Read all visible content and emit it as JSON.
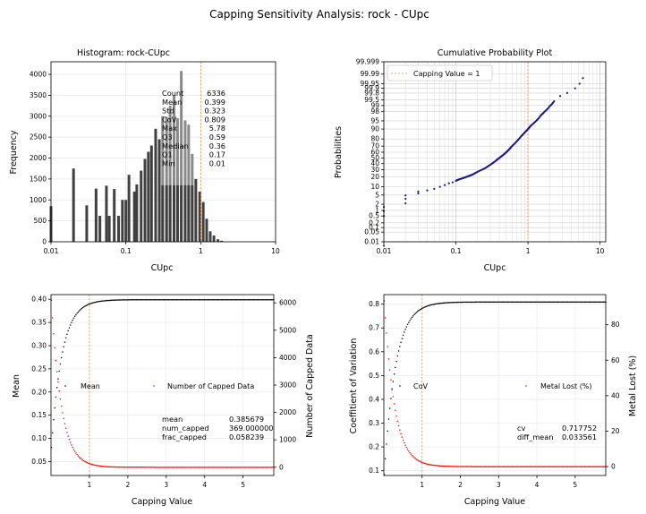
{
  "figure": {
    "title": "Capping Sensitivity Analysis: rock - CUpc"
  },
  "chart_data": [
    {
      "type": "bar",
      "title": "Histogram: rock-CUpc",
      "xlabel": "CUpc",
      "ylabel": "Frequency",
      "xscale": "log",
      "xlim": [
        0.01,
        10
      ],
      "ylim": [
        0,
        4300
      ],
      "x_ticks": [
        "0.01",
        "0.1",
        "1",
        "10"
      ],
      "y_ticks": [
        "0",
        "500",
        "1000",
        "1500",
        "2000",
        "2500",
        "3000",
        "3500",
        "4000"
      ],
      "grid": true,
      "bar_color": "#404040",
      "capping_line": 1,
      "bins": [
        {
          "x": 0.01,
          "count": 850
        },
        {
          "x": 0.02,
          "count": 1750
        },
        {
          "x": 0.03,
          "count": 870
        },
        {
          "x": 0.04,
          "count": 1270
        },
        {
          "x": 0.045,
          "count": 620
        },
        {
          "x": 0.055,
          "count": 1340
        },
        {
          "x": 0.06,
          "count": 620
        },
        {
          "x": 0.07,
          "count": 1260
        },
        {
          "x": 0.08,
          "count": 620
        },
        {
          "x": 0.09,
          "count": 1000
        },
        {
          "x": 0.1,
          "count": 1000
        },
        {
          "x": 0.11,
          "count": 1600
        },
        {
          "x": 0.13,
          "count": 1200
        },
        {
          "x": 0.14,
          "count": 1370
        },
        {
          "x": 0.16,
          "count": 1700
        },
        {
          "x": 0.18,
          "count": 1980
        },
        {
          "x": 0.2,
          "count": 2150
        },
        {
          "x": 0.22,
          "count": 2300
        },
        {
          "x": 0.25,
          "count": 2700
        },
        {
          "x": 0.28,
          "count": 2450
        },
        {
          "x": 0.31,
          "count": 3000
        },
        {
          "x": 0.35,
          "count": 2980
        },
        {
          "x": 0.39,
          "count": 3250
        },
        {
          "x": 0.44,
          "count": 3500
        },
        {
          "x": 0.49,
          "count": 2950
        },
        {
          "x": 0.55,
          "count": 4080
        },
        {
          "x": 0.62,
          "count": 2900
        },
        {
          "x": 0.69,
          "count": 2800
        },
        {
          "x": 0.77,
          "count": 2100
        },
        {
          "x": 0.86,
          "count": 1500
        },
        {
          "x": 0.97,
          "count": 1200
        },
        {
          "x": 1.08,
          "count": 950
        },
        {
          "x": 1.2,
          "count": 550
        },
        {
          "x": 1.34,
          "count": 250
        },
        {
          "x": 1.5,
          "count": 150
        },
        {
          "x": 1.7,
          "count": 60
        },
        {
          "x": 1.9,
          "count": 25
        }
      ],
      "stats": [
        {
          "label": "Count",
          "value": "6336"
        },
        {
          "label": "Mean",
          "value": "0.399"
        },
        {
          "label": "Std",
          "value": "0.323"
        },
        {
          "label": "CoV",
          "value": "0.809"
        },
        {
          "label": "Max",
          "value": "5.78"
        },
        {
          "label": "Q3",
          "value": "0.59"
        },
        {
          "label": "Median",
          "value": "0.36"
        },
        {
          "label": "Q1",
          "value": "0.17"
        },
        {
          "label": "Min",
          "value": "0.01"
        }
      ]
    },
    {
      "type": "scatter",
      "title": "Cumulative Probability Plot",
      "xlabel": "CUpc",
      "ylabel": "Probabilities",
      "xscale": "log",
      "yscale": "probability",
      "xlim": [
        0.01,
        12
      ],
      "x_ticks": [
        "0.01",
        "0.1",
        "1",
        "10"
      ],
      "y_ticks": [
        "0.01",
        "0.05",
        "0.1",
        "0.2",
        "0.5",
        "1",
        "2",
        "5",
        "10",
        "20",
        "30",
        "40",
        "50",
        "60",
        "70",
        "80",
        "90",
        "95",
        "98",
        "99",
        "99.5",
        "99.8",
        "99.9",
        "99.95",
        "99.99",
        "99.999"
      ],
      "legend": {
        "label": "Capping Value = 1",
        "position": "top-left"
      },
      "point_color": "#1a1a8c",
      "capping_line": 1,
      "points": [
        [
          0.01,
          0.005
        ],
        [
          0.01,
          0.5
        ],
        [
          0.01,
          0.9
        ],
        [
          0.01,
          1.5
        ],
        [
          0.02,
          2.2
        ],
        [
          0.02,
          3.5
        ],
        [
          0.02,
          4.8
        ],
        [
          0.03,
          5.8
        ],
        [
          0.03,
          6.8
        ],
        [
          0.04,
          7.5
        ],
        [
          0.05,
          8.5
        ],
        [
          0.06,
          10
        ],
        [
          0.07,
          11.5
        ],
        [
          0.08,
          13
        ],
        [
          0.09,
          14
        ],
        [
          0.1,
          15.5
        ],
        [
          0.11,
          17
        ],
        [
          0.13,
          19
        ],
        [
          0.15,
          21
        ],
        [
          0.17,
          23
        ],
        [
          0.2,
          27
        ],
        [
          0.25,
          32
        ],
        [
          0.3,
          38
        ],
        [
          0.35,
          44
        ],
        [
          0.4,
          50
        ],
        [
          0.45,
          55
        ],
        [
          0.5,
          60
        ],
        [
          0.55,
          65
        ],
        [
          0.6,
          70
        ],
        [
          0.7,
          77
        ],
        [
          0.8,
          83
        ],
        [
          0.9,
          87
        ],
        [
          1.0,
          90
        ],
        [
          1.1,
          92.5
        ],
        [
          1.3,
          95
        ],
        [
          1.5,
          97
        ],
        [
          1.7,
          98
        ],
        [
          2.0,
          98.9
        ],
        [
          2.3,
          99.4
        ],
        [
          2.8,
          99.7
        ],
        [
          3.5,
          99.8
        ],
        [
          4.5,
          99.9
        ],
        [
          5.2,
          99.95
        ],
        [
          5.78,
          99.98
        ]
      ]
    },
    {
      "type": "scatter",
      "xlabel": "Capping Value",
      "ylabel": "Mean",
      "ylabel_right": "Number of Capped Data",
      "xlim": [
        0,
        5.8
      ],
      "ylim": [
        0.02,
        0.41
      ],
      "ylim_right": [
        -300,
        6300
      ],
      "x_ticks": [
        "1",
        "2",
        "3",
        "4",
        "5"
      ],
      "y_ticks": [
        "0.05",
        "0.10",
        "0.15",
        "0.20",
        "0.25",
        "0.30",
        "0.35",
        "0.40"
      ],
      "y_ticks_right": [
        "0",
        "1000",
        "2000",
        "3000",
        "4000",
        "5000",
        "6000"
      ],
      "legend": [
        {
          "label": "Mean",
          "color": "#000000",
          "position": "left"
        },
        {
          "label": "Number of Capped Data",
          "color": "#ff0000",
          "position": "right"
        }
      ],
      "capping_line": 1,
      "mean_asymptote": 0.399,
      "capped_count_start": 6336,
      "stats": [
        {
          "label": "mean",
          "value": "0.385679"
        },
        {
          "label": "num_capped",
          "value": "369.000000"
        },
        {
          "label": "frac_capped",
          "value": "0.058239"
        }
      ]
    },
    {
      "type": "scatter",
      "xlabel": "Capping Value",
      "ylabel": "Coeffitient of Variation",
      "ylabel_right": "Metal Lost (%)",
      "xlim": [
        0,
        5.8
      ],
      "ylim": [
        0.08,
        0.84
      ],
      "ylim_right": [
        -5,
        97
      ],
      "x_ticks": [
        "1",
        "2",
        "3",
        "4",
        "5"
      ],
      "y_ticks": [
        "0.1",
        "0.2",
        "0.3",
        "0.4",
        "0.5",
        "0.6",
        "0.7",
        "0.8"
      ],
      "y_ticks_right": [
        "0",
        "20",
        "40",
        "60",
        "80"
      ],
      "legend": [
        {
          "label": "CoV",
          "color": "#000000",
          "position": "left"
        },
        {
          "label": "Metal Lost (%)",
          "color": "#ff0000",
          "position": "right"
        }
      ],
      "capping_line": 1,
      "cov_asymptote": 0.809,
      "metal_lost_start": 97,
      "stats": [
        {
          "label": "cv",
          "value": "0.717752"
        },
        {
          "label": "diff_mean",
          "value": "0.033561"
        }
      ]
    }
  ]
}
